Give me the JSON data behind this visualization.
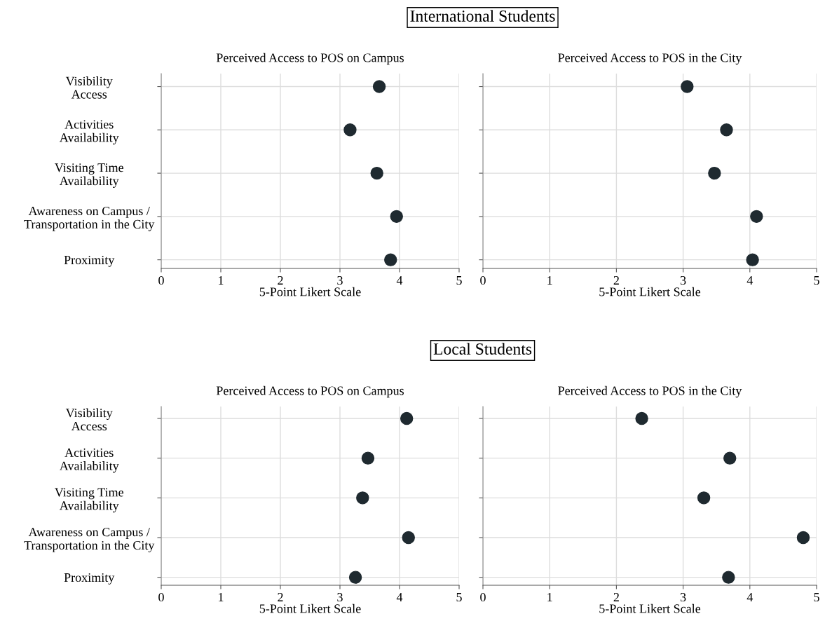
{
  "chart_data": [
    {
      "type": "scatter",
      "orientation": "horizontal",
      "title": "Perceived Access to POS on Campus",
      "xlabel": "5-Point Likert Scale",
      "annotations": [
        "International Students"
      ],
      "categories": [
        "Visibility\nAccess",
        "Activities\nAvailability",
        "Visiting Time\nAvailability",
        "Awareness on Campus /\nTransportation in the City",
        "Proximity"
      ],
      "series": [
        {
          "color": "#1f2a30",
          "values": [
            3.66,
            3.17,
            3.62,
            3.95,
            3.85
          ]
        }
      ],
      "xlim": [
        0,
        5
      ],
      "xticks": [
        0,
        1,
        2,
        3,
        4,
        5
      ],
      "grid": true,
      "marker": "circle"
    },
    {
      "type": "scatter",
      "orientation": "horizontal",
      "title": "Perceived Access to POS in the City",
      "xlabel": "5-Point Likert Scale",
      "categories": [
        null,
        null,
        null,
        null,
        null
      ],
      "series": [
        {
          "color": "#1f2a30",
          "values": [
            3.06,
            3.65,
            3.47,
            4.1,
            4.04
          ]
        }
      ],
      "xlim": [
        0,
        5
      ],
      "xticks": [
        0,
        1,
        2,
        3,
        4,
        5
      ],
      "grid": true,
      "marker": "circle"
    },
    {
      "type": "scatter",
      "orientation": "horizontal",
      "title": "Perceived Access to POS on Campus",
      "xlabel": "5-Point Likert Scale",
      "annotations": [
        "Local Students"
      ],
      "categories": [
        "Visibility\nAccess",
        "Activities\nAvailability",
        "Visiting Time\nAvailability",
        "Awareness on Campus /\nTransportation in the City",
        "Proximity"
      ],
      "series": [
        {
          "color": "#1f2a30",
          "values": [
            4.12,
            3.47,
            3.38,
            4.15,
            3.26
          ]
        }
      ],
      "xlim": [
        0,
        5
      ],
      "xticks": [
        0,
        1,
        2,
        3,
        4,
        5
      ],
      "grid": true,
      "marker": "circle"
    },
    {
      "type": "scatter",
      "orientation": "horizontal",
      "title": "Perceived Access to POS in the City",
      "xlabel": "5-Point Likert Scale",
      "categories": [
        null,
        null,
        null,
        null,
        null
      ],
      "series": [
        {
          "color": "#1f2a30",
          "values": [
            2.38,
            3.7,
            3.31,
            4.8,
            3.68
          ]
        }
      ],
      "xlim": [
        0,
        5
      ],
      "xticks": [
        0,
        1,
        2,
        3,
        4,
        5
      ],
      "grid": true,
      "marker": "circle"
    }
  ]
}
